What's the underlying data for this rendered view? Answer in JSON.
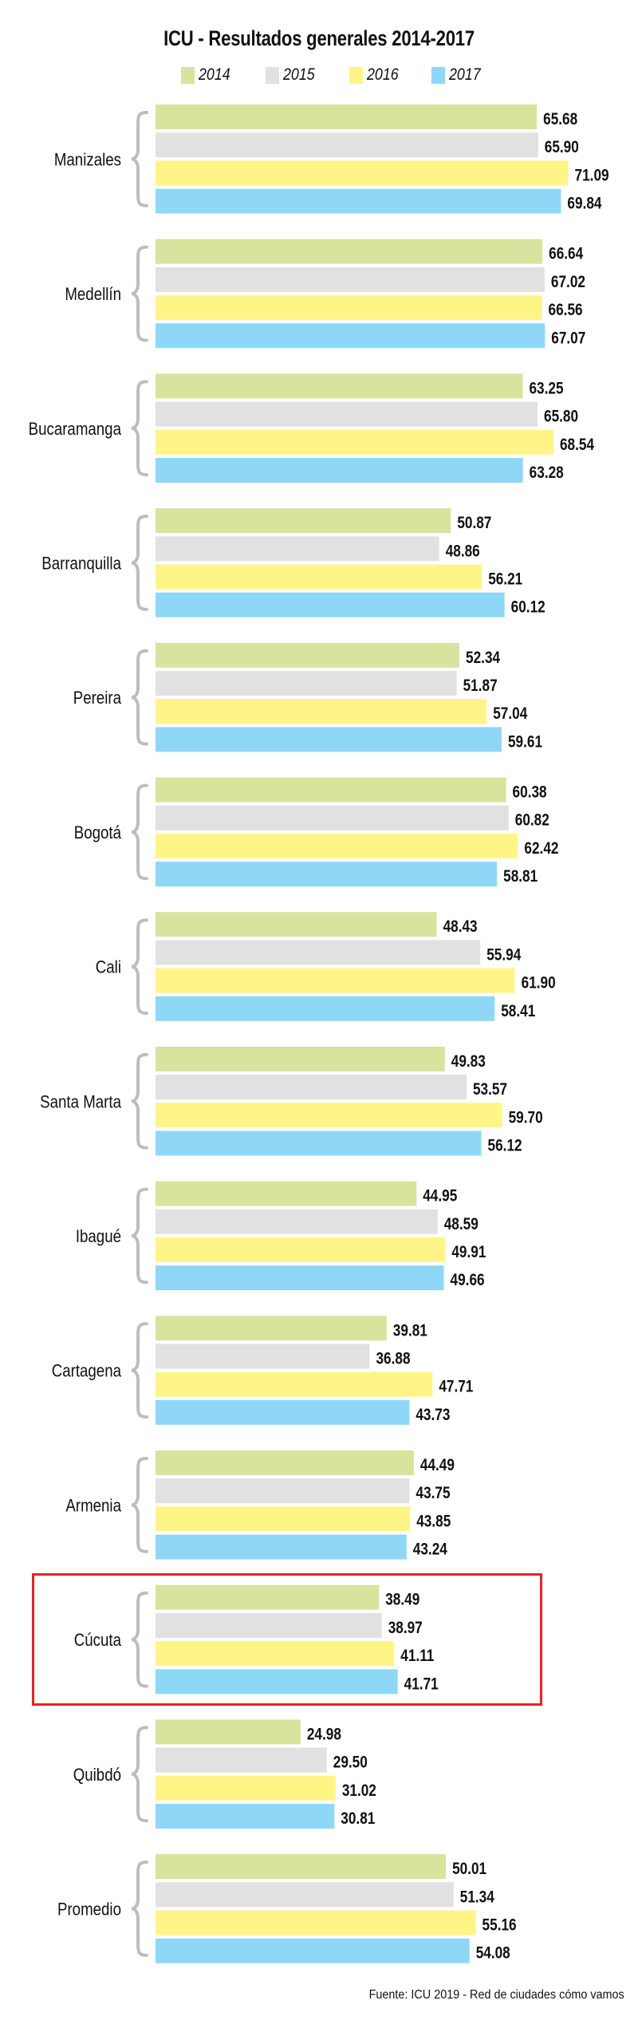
{
  "chart_data": {
    "type": "bar",
    "orientation": "horizontal",
    "title": "ICU - Resultados generales 2014-2017",
    "xlabel": "",
    "ylabel": "",
    "grid": false,
    "legend_position": "top-center",
    "categories": [
      "Manizales",
      "Medellín",
      "Bucaramanga",
      "Barranquilla",
      "Pereira",
      "Bogotá",
      "Cali",
      "Santa Marta",
      "Ibagué",
      "Cartagena",
      "Armenia",
      "Cúcuta",
      "Quibdó",
      "Promedio"
    ],
    "series": [
      {
        "name": "2014",
        "color": "#d7e49e",
        "values": [
          65.68,
          66.64,
          63.25,
          50.87,
          52.34,
          60.38,
          48.43,
          49.83,
          44.95,
          39.81,
          44.49,
          38.49,
          24.98,
          50.01
        ]
      },
      {
        "name": "2015",
        "color": "#e1e1e2",
        "values": [
          65.9,
          67.02,
          65.8,
          48.86,
          51.87,
          60.82,
          55.94,
          53.57,
          48.59,
          36.88,
          43.75,
          38.97,
          29.5,
          51.34
        ]
      },
      {
        "name": "2016",
        "color": "#fff587",
        "values": [
          71.09,
          66.56,
          68.54,
          56.21,
          57.04,
          62.42,
          61.9,
          59.7,
          49.91,
          47.71,
          43.85,
          41.11,
          31.02,
          55.16
        ]
      },
      {
        "name": "2017",
        "color": "#8fd7f7",
        "values": [
          69.84,
          67.07,
          63.28,
          60.12,
          59.61,
          58.81,
          58.41,
          56.12,
          49.66,
          43.73,
          43.24,
          41.71,
          30.81,
          54.08
        ]
      }
    ],
    "value_labels": [
      [
        "65.68",
        "65.90",
        "71.09",
        "69.84"
      ],
      [
        "66.64",
        "67.02",
        "66.56",
        "67.07"
      ],
      [
        "63.25",
        "65.80",
        "68.54",
        "63.28"
      ],
      [
        "50.87",
        "48.86",
        "56.21",
        "60.12"
      ],
      [
        "52.34",
        "51.87",
        "57.04",
        "59.61"
      ],
      [
        "60.38",
        "60.82",
        "62.42",
        "58.81"
      ],
      [
        "48.43",
        "55.94",
        "61.90",
        "58.41"
      ],
      [
        "49.83",
        "53.57",
        "59.70",
        "56.12"
      ],
      [
        "44.95",
        "48.59",
        "49.91",
        "49.66"
      ],
      [
        "39.81",
        "36.88",
        "47.71",
        "43.73"
      ],
      [
        "44.49",
        "43.75",
        "43.85",
        "43.24"
      ],
      [
        "38.49",
        "38.97",
        "41.11",
        "41.71"
      ],
      [
        "24.98",
        "29.50",
        "31.02",
        "30.81"
      ],
      [
        "50.01",
        "51.34",
        "55.16",
        "54.08"
      ]
    ],
    "xlim": [
      0,
      80
    ],
    "highlighted_category": "Cúcuta",
    "highlight_color": "#e5222a",
    "brace_color": "#bcbdc0"
  },
  "legend": {
    "items": [
      {
        "label": "2014",
        "color": "#d7e49e"
      },
      {
        "label": "2015",
        "color": "#e1e1e2"
      },
      {
        "label": "2016",
        "color": "#fff587"
      },
      {
        "label": "2017",
        "color": "#8fd7f7"
      }
    ]
  },
  "footer": {
    "source": "Fuente: ICU 2019 - Red de ciudades cómo vamos"
  }
}
